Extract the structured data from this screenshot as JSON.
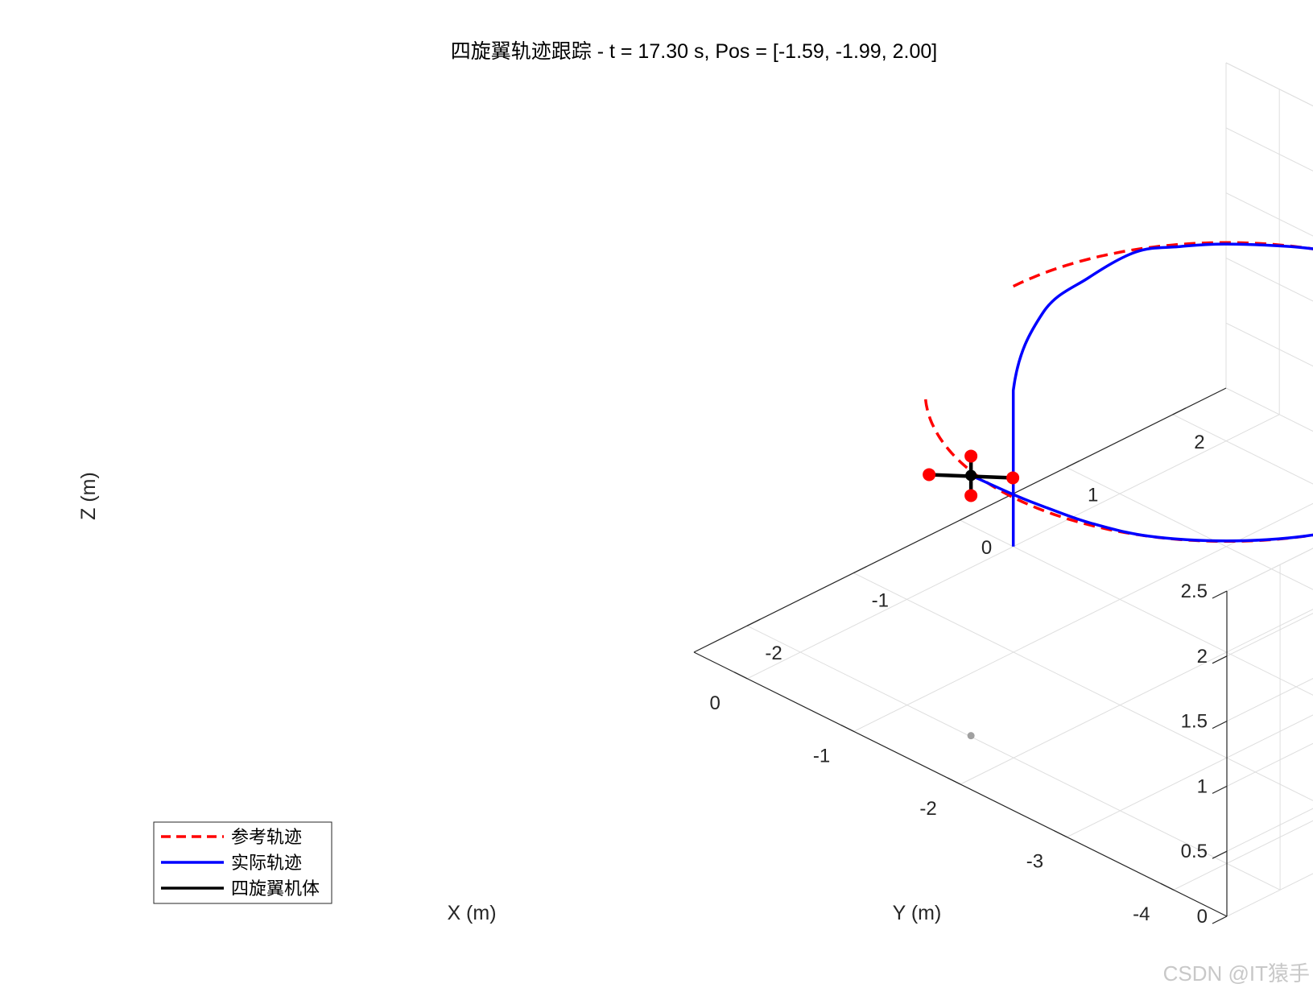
{
  "chart_data": {
    "type": "line",
    "projection": "3d",
    "title": "四旋翼轨迹跟踪 - t = 17.30 s, Pos = [-1.59, -1.99, 2.00]",
    "xlabel": "X (m)",
    "ylabel": "Y (m)",
    "zlabel": "Z (m)",
    "xlim": [
      -4.5,
      0.5
    ],
    "ylim": [
      -2.5,
      2.5
    ],
    "zlim": [
      0,
      2.5
    ],
    "xticks": [
      "-4",
      "-3",
      "-2",
      "-1",
      "0"
    ],
    "yticks": [
      "-2",
      "-1",
      "0",
      "1",
      "2"
    ],
    "zticks": [
      "0",
      "0.5",
      "1",
      "1.5",
      "2",
      "2.5"
    ],
    "grid": true,
    "legend_position": "bottom-left",
    "series": [
      {
        "name": "参考轨迹",
        "style": "dashed",
        "color": "#ff0000",
        "center": [
          -2,
          0
        ],
        "radius": 2,
        "z": 2,
        "start_angle_deg": 0,
        "end_angle_deg": 314
      },
      {
        "name": "实际轨迹",
        "style": "solid",
        "color": "#0000ff",
        "points": [
          [
            0,
            0,
            0
          ],
          [
            0,
            0,
            1.2
          ],
          [
            -0.08,
            0.2,
            1.75
          ],
          [
            -0.15,
            0.55,
            1.9
          ],
          [
            -0.25,
            0.9,
            2.0
          ],
          [
            -0.4,
            1.15,
            2.0
          ],
          [
            -0.6,
            1.4,
            2.0
          ],
          [
            -1.0,
            1.73,
            2.0
          ],
          [
            -1.38,
            1.9,
            2.0
          ],
          [
            -2.0,
            2.0,
            2.0
          ],
          [
            -2.62,
            1.9,
            2.0
          ],
          [
            -3.0,
            1.73,
            2.0
          ],
          [
            -3.41,
            1.41,
            2.0
          ],
          [
            -3.73,
            1.0,
            2.0
          ],
          [
            -3.93,
            0.52,
            2.0
          ],
          [
            -4.0,
            0.0,
            2.0
          ],
          [
            -3.93,
            -0.52,
            2.0
          ],
          [
            -3.73,
            -1.0,
            2.0
          ],
          [
            -3.41,
            -1.41,
            2.0
          ],
          [
            -3.0,
            -1.73,
            2.0
          ],
          [
            -2.6,
            -1.88,
            2.0
          ],
          [
            -2.25,
            -1.94,
            2.0
          ],
          [
            -2.0,
            -1.97,
            2.0
          ],
          [
            -1.59,
            -1.99,
            2.0
          ]
        ]
      },
      {
        "name": "四旋翼机体",
        "style": "solid",
        "color": "#000000",
        "position": [
          -1.59,
          -1.99,
          2.0
        ],
        "arm_length": 0.3,
        "rotor_color": "#ff0000"
      }
    ],
    "ground_marker": [
      -1.59,
      -1.99,
      0
    ]
  },
  "watermark": "CSDN @IT猿手"
}
